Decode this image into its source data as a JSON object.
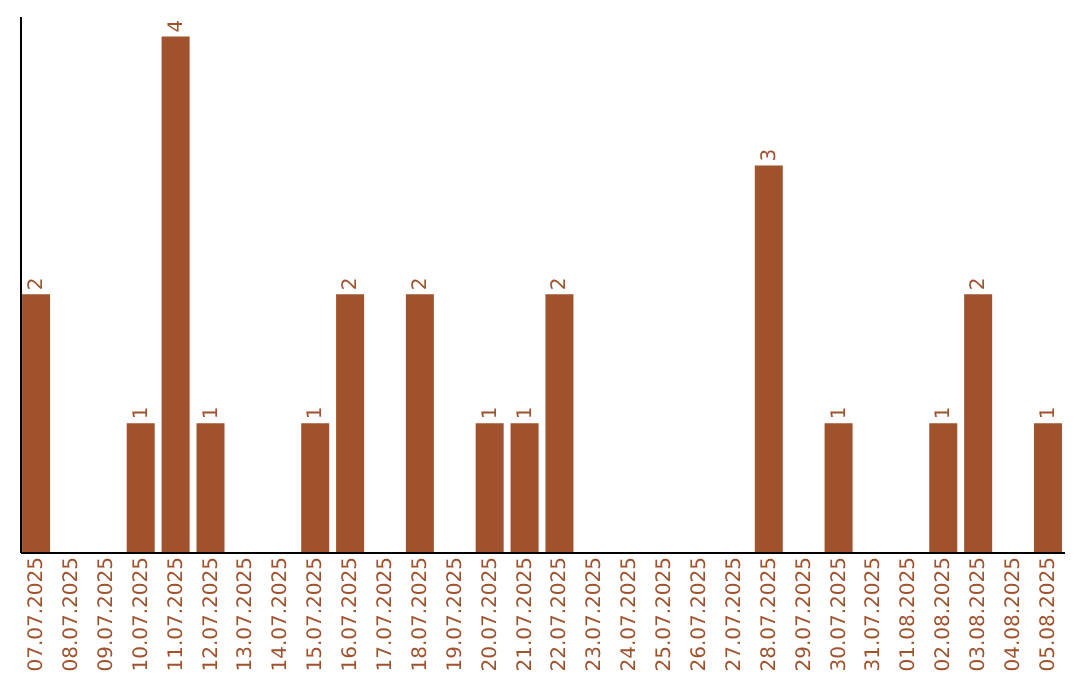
{
  "chart_data": {
    "type": "bar",
    "color": "#a0522d",
    "categories": [
      "07.07.2025",
      "08.07.2025",
      "09.07.2025",
      "10.07.2025",
      "11.07.2025",
      "12.07.2025",
      "13.07.2025",
      "14.07.2025",
      "15.07.2025",
      "16.07.2025",
      "17.07.2025",
      "18.07.2025",
      "19.07.2025",
      "20.07.2025",
      "21.07.2025",
      "22.07.2025",
      "23.07.2025",
      "24.07.2025",
      "25.07.2025",
      "26.07.2025",
      "27.07.2025",
      "28.07.2025",
      "29.07.2025",
      "30.07.2025",
      "31.07.2025",
      "01.08.2025",
      "02.08.2025",
      "03.08.2025",
      "04.08.2025",
      "05.08.2025"
    ],
    "values": [
      2,
      0,
      0,
      1,
      4,
      1,
      0,
      0,
      1,
      2,
      0,
      2,
      0,
      1,
      1,
      2,
      0,
      0,
      0,
      0,
      0,
      3,
      0,
      1,
      0,
      0,
      1,
      2,
      0,
      1
    ],
    "value_labels": [
      "2",
      null,
      null,
      "1",
      "4",
      "1",
      null,
      null,
      "1",
      "2",
      null,
      "2",
      null,
      "1",
      "1",
      "2",
      null,
      null,
      null,
      null,
      null,
      "3",
      null,
      "1",
      null,
      null,
      "1",
      "2",
      null,
      "1"
    ],
    "grid": false
  }
}
